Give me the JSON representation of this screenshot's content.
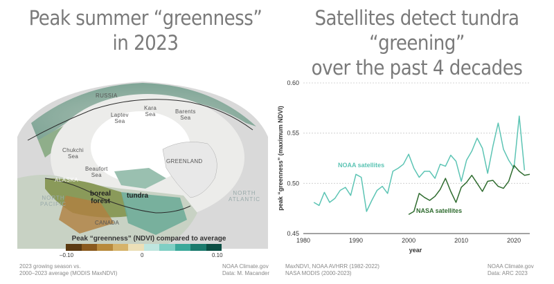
{
  "left_panel": {
    "title_line1": "Peak summer “greenness”",
    "title_line2": "in 2023",
    "map_labels": {
      "russia": "RUSSIA",
      "laptev": "Laptev\nSea",
      "kara": "Kara\nSea",
      "barents": "Barents\nSea",
      "chukchi": "Chukchi\nSea",
      "beaufort": "Beaufort\nSea",
      "greenland": "GREENLAND",
      "alaska": "ALASKA",
      "boreal_forest": "boreal\nforest",
      "tundra": "tundra",
      "north_pacific": "NORTH\nPACIFIC",
      "north_atlantic": "NORTH\nATLANTIC",
      "canada": "CANADA"
    },
    "legend": {
      "title": "Peak “greenness” (NDVI) compared to average",
      "min_label": "–0.10",
      "mid_label": "0",
      "max_label": "0.10",
      "colors": [
        "#5b3a12",
        "#8a5a1e",
        "#b88a3c",
        "#d6b36a",
        "#ece0b8",
        "#bfe6df",
        "#7fcfc4",
        "#3aa89a",
        "#1b7a6d",
        "#0c4f45"
      ]
    },
    "footnote_left_line1": "2023 growing season vs.",
    "footnote_left_line2": "2000–2023 average (MODIS MaxNDVI)",
    "footnote_right_line1": "NOAA Climate.gov",
    "footnote_right_line2": "Data: M. Macander"
  },
  "right_panel": {
    "title_line1": "Satellites detect tundra “greening”",
    "title_line2": "over the past 4 decades",
    "footnote_left_line1": "MaxNDVI, NOAA AVHRR (1982-2022)",
    "footnote_left_line2": "NASA MODIS (2000-2023)",
    "footnote_right_line1": "NOAA Climate.gov",
    "footnote_right_line2": "Data: ARC 2023"
  },
  "chart_data": {
    "type": "line",
    "title": "Satellites detect tundra “greening” over the past 4 decades",
    "xlabel": "year",
    "ylabel": "peak “greenness” (maximum NDVI)",
    "xlim": [
      1980,
      2023
    ],
    "ylim": [
      0.45,
      0.6
    ],
    "xticks": [
      1980,
      1990,
      2000,
      2010,
      2020
    ],
    "yticks": [
      "0.45",
      "0.50",
      "0.55",
      "0.60"
    ],
    "grid": "horizontal dotted",
    "colors": {
      "noaa": "#5cc4b4",
      "nasa": "#2e6b2e"
    },
    "series": [
      {
        "name": "NOAA satellites",
        "x": [
          1982,
          1983,
          1984,
          1985,
          1986,
          1987,
          1988,
          1989,
          1990,
          1991,
          1992,
          1993,
          1994,
          1995,
          1996,
          1997,
          1998,
          1999,
          2000,
          2001,
          2002,
          2003,
          2004,
          2005,
          2006,
          2007,
          2008,
          2009,
          2010,
          2011,
          2012,
          2013,
          2014,
          2015,
          2016,
          2017,
          2018,
          2019,
          2020,
          2021,
          2022
        ],
        "values": [
          0.481,
          0.478,
          0.491,
          0.481,
          0.485,
          0.493,
          0.496,
          0.488,
          0.509,
          0.506,
          0.472,
          0.483,
          0.493,
          0.497,
          0.49,
          0.512,
          0.515,
          0.519,
          0.529,
          0.515,
          0.506,
          0.512,
          0.512,
          0.505,
          0.519,
          0.517,
          0.528,
          0.522,
          0.502,
          0.523,
          0.532,
          0.545,
          0.535,
          0.51,
          0.537,
          0.56,
          0.534,
          0.523,
          0.515,
          0.567,
          0.513
        ]
      },
      {
        "name": "NASA satellites",
        "x": [
          2000,
          2001,
          2002,
          2003,
          2004,
          2005,
          2006,
          2007,
          2008,
          2009,
          2010,
          2011,
          2012,
          2013,
          2014,
          2015,
          2016,
          2017,
          2018,
          2019,
          2020,
          2021,
          2022,
          2023
        ],
        "values": [
          0.469,
          0.472,
          0.49,
          0.486,
          0.483,
          0.487,
          0.494,
          0.505,
          0.492,
          0.481,
          0.496,
          0.501,
          0.508,
          0.5,
          0.492,
          0.502,
          0.503,
          0.497,
          0.495,
          0.502,
          0.518,
          0.512,
          0.508,
          0.509
        ]
      }
    ]
  }
}
